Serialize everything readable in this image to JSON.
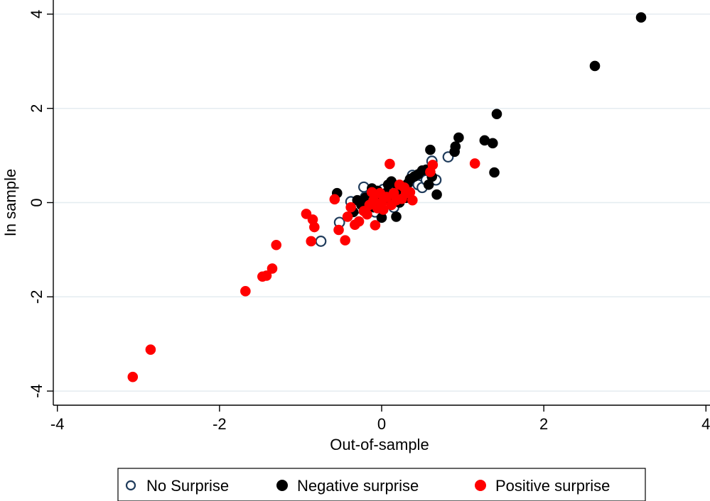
{
  "chart_data": {
    "type": "scatter",
    "title": "",
    "xlabel": "Out-of-sample",
    "ylabel": "In sample",
    "xlim": [
      -4.05,
      4.05
    ],
    "ylim": [
      -4.3,
      4.3
    ],
    "xticks": [
      -4,
      -2,
      0,
      2,
      4
    ],
    "yticks": [
      -4,
      -2,
      0,
      2,
      4
    ],
    "x_tick_labels": [
      "-4",
      "-2",
      "0",
      "2",
      "4"
    ],
    "y_tick_labels": [
      "-4",
      "-2",
      "0",
      "2",
      "4"
    ],
    "grid": "horizontal",
    "legend_position": "bottom",
    "colors": {
      "no_surprise_edge": "#1f3b5b",
      "negative": "#000000",
      "positive": "#ff0000",
      "grid": "#e4ecf0",
      "axis": "#000000"
    },
    "series": [
      {
        "name": "No Surprise",
        "marker": "hollow-circle",
        "points": [
          [
            -0.75,
            -0.82
          ],
          [
            -0.52,
            -0.42
          ],
          [
            -0.38,
            0.02
          ],
          [
            -0.3,
            -0.12
          ],
          [
            -0.22,
            0.33
          ],
          [
            -0.2,
            0.12
          ],
          [
            -0.15,
            -0.05
          ],
          [
            -0.1,
            0.2
          ],
          [
            -0.05,
            0.05
          ],
          [
            0.02,
            0.28
          ],
          [
            0.05,
            0.15
          ],
          [
            0.1,
            0.32
          ],
          [
            0.2,
            0.3
          ],
          [
            0.35,
            0.45
          ],
          [
            0.38,
            0.58
          ],
          [
            0.45,
            0.38
          ],
          [
            0.5,
            0.32
          ],
          [
            0.55,
            0.48
          ],
          [
            0.62,
            0.88
          ],
          [
            0.67,
            0.48
          ],
          [
            0.82,
            0.97
          ],
          [
            0.25,
            0.1
          ],
          [
            0.15,
            -0.1
          ],
          [
            -0.08,
            -0.2
          ]
        ]
      },
      {
        "name": "Negative surprise",
        "marker": "filled-circle",
        "points": [
          [
            3.2,
            3.93
          ],
          [
            2.63,
            2.9
          ],
          [
            1.42,
            1.88
          ],
          [
            1.27,
            1.32
          ],
          [
            1.37,
            1.26
          ],
          [
            1.39,
            0.64
          ],
          [
            0.95,
            1.38
          ],
          [
            0.91,
            1.19
          ],
          [
            0.9,
            1.08
          ],
          [
            0.6,
            1.12
          ],
          [
            0.68,
            0.17
          ],
          [
            0.62,
            0.55
          ],
          [
            0.55,
            0.7
          ],
          [
            0.5,
            0.68
          ],
          [
            0.45,
            0.6
          ],
          [
            0.4,
            0.55
          ],
          [
            0.35,
            0.5
          ],
          [
            0.32,
            0.4
          ],
          [
            0.28,
            0.3
          ],
          [
            0.25,
            0.2
          ],
          [
            0.2,
            0.35
          ],
          [
            0.18,
            -0.3
          ],
          [
            0.15,
            0.15
          ],
          [
            0.12,
            0.45
          ],
          [
            0.1,
            0.05
          ],
          [
            0.05,
            0.2
          ],
          [
            0.0,
            -0.32
          ],
          [
            -0.02,
            0.1
          ],
          [
            -0.05,
            0.25
          ],
          [
            -0.1,
            -0.1
          ],
          [
            -0.12,
            0.3
          ],
          [
            -0.15,
            0.0
          ],
          [
            -0.2,
            0.1
          ],
          [
            -0.25,
            -0.05
          ],
          [
            -0.3,
            0.05
          ],
          [
            -0.35,
            -0.2
          ],
          [
            -0.55,
            0.2
          ],
          [
            0.58,
            0.38
          ],
          [
            0.3,
            0.1
          ],
          [
            0.08,
            0.38
          ],
          [
            -0.08,
            0.15
          ],
          [
            0.22,
            0.0
          ]
        ]
      },
      {
        "name": "Positive surprise",
        "marker": "filled-circle",
        "points": [
          [
            -3.07,
            -3.7
          ],
          [
            -2.85,
            -3.12
          ],
          [
            -1.68,
            -1.88
          ],
          [
            -1.47,
            -1.57
          ],
          [
            -1.42,
            -1.55
          ],
          [
            -1.35,
            -1.4
          ],
          [
            -1.3,
            -0.9
          ],
          [
            -0.93,
            -0.24
          ],
          [
            -0.85,
            -0.36
          ],
          [
            -0.83,
            -0.52
          ],
          [
            -0.87,
            -0.82
          ],
          [
            -0.58,
            0.07
          ],
          [
            -0.53,
            -0.58
          ],
          [
            -0.45,
            -0.8
          ],
          [
            -0.42,
            -0.3
          ],
          [
            -0.38,
            -0.1
          ],
          [
            -0.33,
            -0.47
          ],
          [
            -0.28,
            -0.4
          ],
          [
            -0.22,
            -0.18
          ],
          [
            -0.18,
            -0.25
          ],
          [
            -0.15,
            -0.05
          ],
          [
            -0.1,
            0.05
          ],
          [
            -0.08,
            -0.48
          ],
          [
            -0.05,
            -0.12
          ],
          [
            0.0,
            0.0
          ],
          [
            0.02,
            -0.15
          ],
          [
            0.06,
            0.12
          ],
          [
            0.1,
            0.82
          ],
          [
            0.12,
            -0.05
          ],
          [
            0.15,
            0.2
          ],
          [
            0.18,
            0.05
          ],
          [
            0.22,
            0.38
          ],
          [
            0.25,
            0.08
          ],
          [
            0.3,
            0.2
          ],
          [
            0.35,
            0.22
          ],
          [
            0.38,
            0.05
          ],
          [
            0.6,
            0.65
          ],
          [
            0.63,
            0.8
          ],
          [
            1.15,
            0.83
          ],
          [
            -0.02,
            0.2
          ],
          [
            -0.12,
            0.22
          ],
          [
            0.28,
            0.32
          ]
        ]
      }
    ]
  }
}
